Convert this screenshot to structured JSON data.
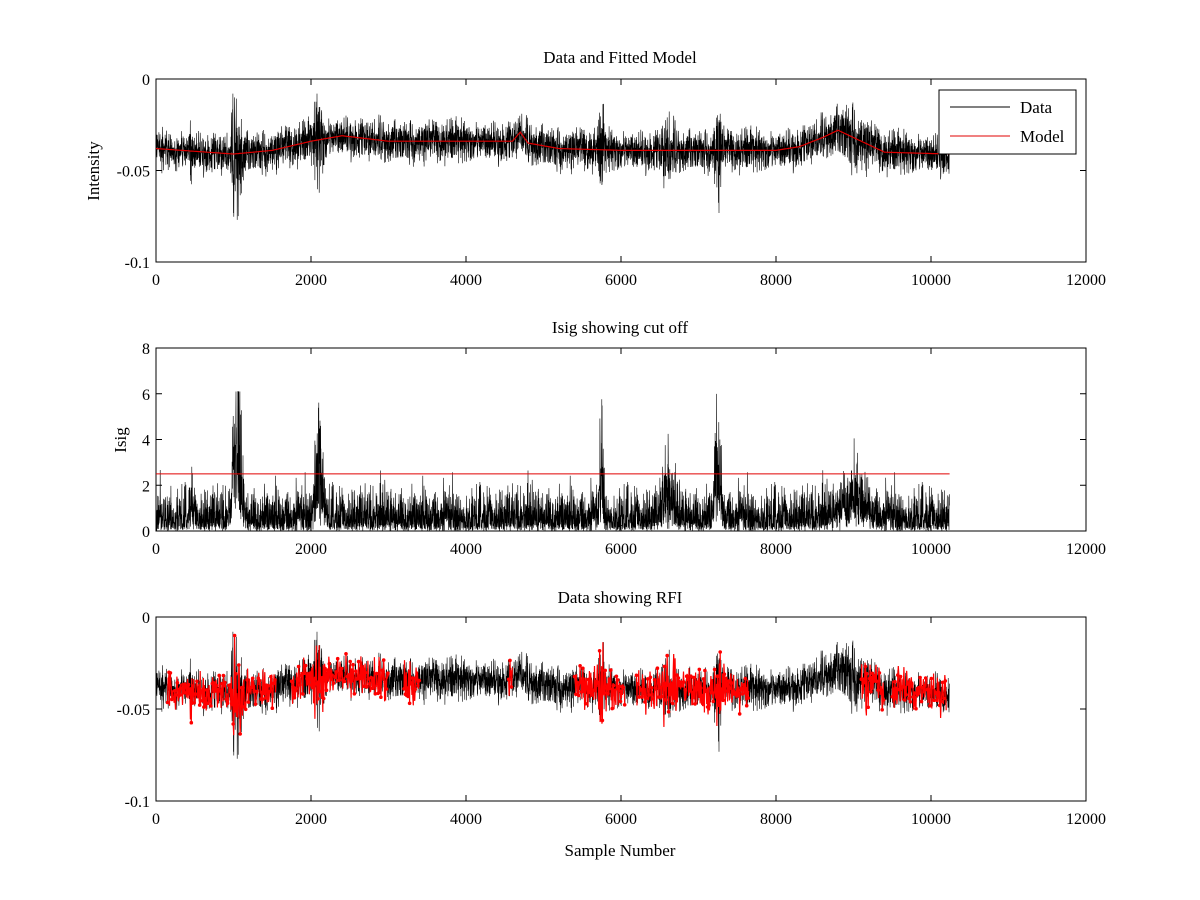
{
  "colors": {
    "data": "#000000",
    "model": "#e00000",
    "rfi": "#ff0000",
    "cutoff": "#e00000",
    "background": "#ffffff"
  },
  "chart_data": [
    {
      "type": "line",
      "title": "Data and Fitted Model",
      "xlabel": "",
      "ylabel": "Intensity",
      "xlim": [
        0,
        12000
      ],
      "ylim": [
        -0.1,
        0
      ],
      "xticks": [
        0,
        2000,
        4000,
        6000,
        8000,
        10000,
        12000
      ],
      "xtick_labels": [
        "0",
        "2000",
        "4000",
        "6000",
        "8000",
        "10000",
        "12000"
      ],
      "yticks": [
        -0.1,
        -0.05,
        0
      ],
      "ytick_labels": [
        "-0.1",
        "-0.05",
        "0"
      ],
      "legend": {
        "placement": "top-right",
        "entries": [
          "Data",
          "Model"
        ]
      },
      "series": [
        {
          "name": "Data",
          "kind": "noise",
          "n_points": 10240,
          "x_range": [
            0,
            10240
          ],
          "approx_range": [
            -0.083,
            -0.009
          ]
        },
        {
          "name": "Model",
          "x": [
            0,
            1000,
            1500,
            2000,
            2400,
            3000,
            4000,
            4600,
            4700,
            4800,
            5200,
            6000,
            8000,
            8300,
            8600,
            8800,
            9000,
            9400,
            10240
          ],
          "values": [
            -0.038,
            -0.041,
            -0.039,
            -0.034,
            -0.031,
            -0.034,
            -0.034,
            -0.034,
            -0.029,
            -0.035,
            -0.038,
            -0.039,
            -0.039,
            -0.037,
            -0.032,
            -0.028,
            -0.032,
            -0.04,
            -0.041
          ]
        }
      ]
    },
    {
      "type": "line",
      "title": "Isig showing cut off",
      "xlabel": "",
      "ylabel": "Isig",
      "xlim": [
        0,
        12000
      ],
      "ylim": [
        0,
        8
      ],
      "xticks": [
        0,
        2000,
        4000,
        6000,
        8000,
        10000,
        12000
      ],
      "xtick_labels": [
        "0",
        "2000",
        "4000",
        "6000",
        "8000",
        "10000",
        "12000"
      ],
      "yticks": [
        0,
        2,
        4,
        6,
        8
      ],
      "ytick_labels": [
        "0",
        "2",
        "4",
        "6",
        "8"
      ],
      "series": [
        {
          "name": "Isig",
          "kind": "noise",
          "n_points": 10240,
          "x_range": [
            0,
            10240
          ],
          "approx_range": [
            0,
            6.1
          ]
        },
        {
          "name": "Cut off",
          "x": [
            0,
            10240
          ],
          "values": [
            2.5,
            2.5
          ]
        }
      ]
    },
    {
      "type": "scatter",
      "title": "Data showing RFI",
      "xlabel": "Sample Number",
      "ylabel": "",
      "xlim": [
        0,
        12000
      ],
      "ylim": [
        -0.1,
        0
      ],
      "xticks": [
        0,
        2000,
        4000,
        6000,
        8000,
        10000,
        12000
      ],
      "xtick_labels": [
        "0",
        "2000",
        "4000",
        "6000",
        "8000",
        "10000",
        "12000"
      ],
      "yticks": [
        -0.1,
        -0.05,
        0
      ],
      "ytick_labels": [
        "-0.1",
        "-0.05",
        "0"
      ],
      "series": [
        {
          "name": "Data",
          "kind": "noise",
          "n_points": 10240,
          "x_range": [
            0,
            10240
          ],
          "approx_range": [
            -0.083,
            -0.008
          ]
        },
        {
          "name": "RFI",
          "kind": "markers",
          "flagged_regions": [
            [
              150,
              1550
            ],
            [
              1750,
              3000
            ],
            [
              3200,
              3400
            ],
            [
              4550,
              4600
            ],
            [
              5400,
              6050
            ],
            [
              6200,
              7650
            ],
            [
              9100,
              9400
            ],
            [
              9500,
              10200
            ]
          ]
        }
      ]
    }
  ]
}
